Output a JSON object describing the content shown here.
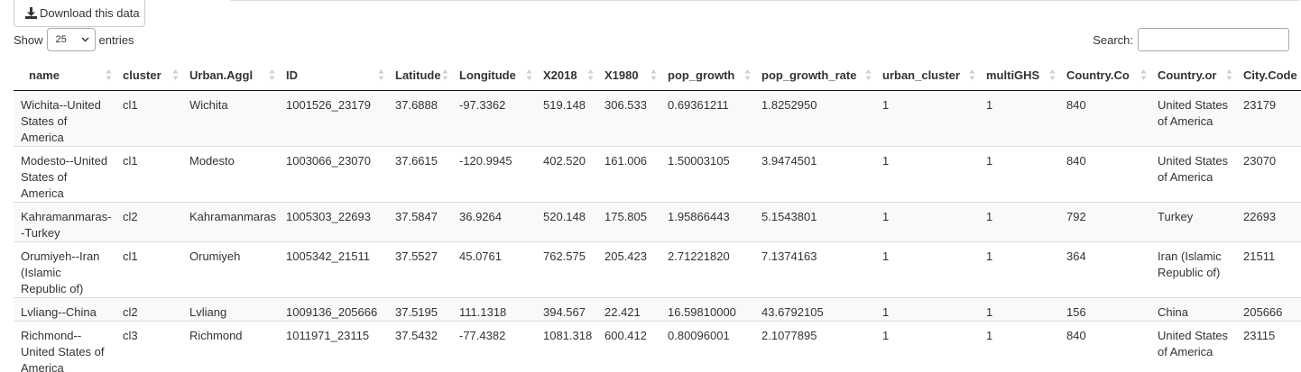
{
  "toolbar": {
    "download_label": "Download this data"
  },
  "length_control": {
    "prefix": "Show",
    "selected": "25",
    "suffix": "entries"
  },
  "search": {
    "label": "Search:",
    "value": "",
    "placeholder": ""
  },
  "table": {
    "columns": [
      "name",
      "cluster",
      "Urban.Aggl",
      "ID",
      "Latitude",
      "Longitude",
      "X2018",
      "X1980",
      "pop_growth",
      "pop_growth_rate",
      "urban_cluster",
      "multiGHS",
      "Country.Co",
      "Country.or",
      "City.Code"
    ],
    "rows": [
      [
        "Wichita--United States of America",
        "cl1",
        "Wichita",
        "1001526_23179",
        "37.6888",
        "-97.3362",
        "519.148",
        "306.533",
        "0.69361211",
        "1.8252950",
        "1",
        "1",
        "840",
        "United States of America",
        "23179"
      ],
      [
        "Modesto--United States of America",
        "cl1",
        "Modesto",
        "1003066_23070",
        "37.6615",
        "-120.9945",
        "402.520",
        "161.006",
        "1.50003105",
        "3.9474501",
        "1",
        "1",
        "840",
        "United States of America",
        "23070"
      ],
      [
        "Kahramanmaras--Turkey",
        "cl2",
        "Kahramanmaras",
        "1005303_22693",
        "37.5847",
        "36.9264",
        "520.148",
        "175.805",
        "1.95866443",
        "5.1543801",
        "1",
        "1",
        "792",
        "Turkey",
        "22693"
      ],
      [
        "Orumiyeh--Iran (Islamic Republic of)",
        "cl1",
        "Orumiyeh",
        "1005342_21511",
        "37.5527",
        "45.0761",
        "762.575",
        "205.423",
        "2.71221820",
        "7.1374163",
        "1",
        "1",
        "364",
        "Iran (Islamic Republic of)",
        "21511"
      ],
      [
        "Lvliang--China",
        "cl2",
        "Lvliang",
        "1009136_205666",
        "37.5195",
        "111.1318",
        "394.567",
        "22.421",
        "16.59810000",
        "43.6792105",
        "1",
        "1",
        "156",
        "China",
        "205666"
      ],
      [
        "Richmond--United States of America",
        "cl3",
        "Richmond",
        "1011971_23115",
        "37.5432",
        "-77.4382",
        "1081.318",
        "600.412",
        "0.80096001",
        "2.1077895",
        "1",
        "1",
        "840",
        "United States of America",
        "23115"
      ]
    ]
  }
}
